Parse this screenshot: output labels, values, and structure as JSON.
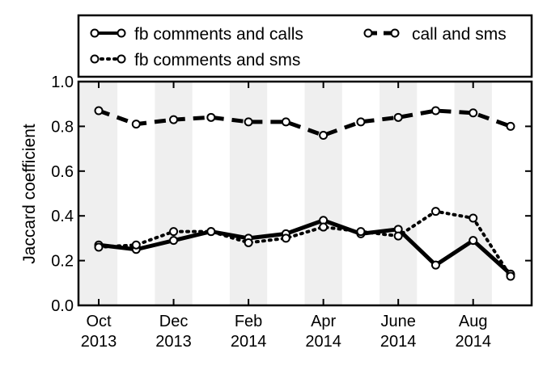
{
  "chart_data": {
    "type": "line",
    "ylabel": "Jaccard coefficient",
    "ylim": [
      0.0,
      1.0
    ],
    "yticks": [
      "0.0",
      "0.2",
      "0.4",
      "0.6",
      "0.8",
      "1.0"
    ],
    "x": [
      "2013-10",
      "2013-11",
      "2013-12",
      "2014-01",
      "2014-02",
      "2014-03",
      "2014-04",
      "2014-05",
      "2014-06",
      "2014-07",
      "2014-08",
      "2014-09"
    ],
    "xticks": [
      {
        "month": "Oct",
        "year": "2013"
      },
      {
        "month": "Dec",
        "year": "2013"
      },
      {
        "month": "Feb",
        "year": "2014"
      },
      {
        "month": "Apr",
        "year": "2014"
      },
      {
        "month": "June",
        "year": "2014"
      },
      {
        "month": "Aug",
        "year": "2014"
      }
    ],
    "grid": false,
    "alternating_month_shading": true,
    "legend_position": "top, above plot",
    "series": [
      {
        "name": "fb comments and calls",
        "style": "solid",
        "values": [
          0.27,
          0.25,
          0.29,
          0.33,
          0.3,
          0.32,
          0.38,
          0.32,
          0.34,
          0.18,
          0.29,
          0.14
        ]
      },
      {
        "name": "fb comments and sms",
        "style": "dotted",
        "values": [
          0.26,
          0.27,
          0.33,
          0.33,
          0.28,
          0.3,
          0.35,
          0.33,
          0.31,
          0.42,
          0.39,
          0.13
        ]
      },
      {
        "name": "call and sms",
        "style": "dashed",
        "values": [
          0.87,
          0.81,
          0.83,
          0.84,
          0.82,
          0.82,
          0.76,
          0.82,
          0.84,
          0.87,
          0.86,
          0.8
        ]
      }
    ],
    "colors": {
      "line": "#000000",
      "marker_fill": "#ffffff",
      "shade": "#efefef"
    }
  }
}
